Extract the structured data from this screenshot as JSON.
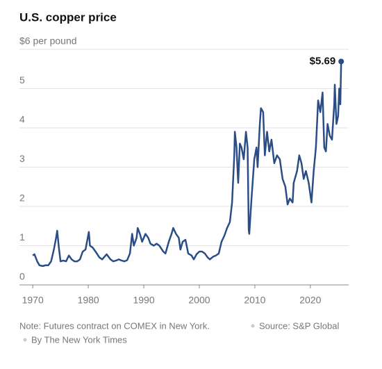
{
  "chart_data": {
    "type": "line",
    "title": "U.S. copper price",
    "annotation": "$5.69",
    "note": "Note: Futures contract on COMEX in New York.",
    "source": "Source: S&P Global",
    "credit": "By The New York Times",
    "color": "#2b4d87",
    "grid": true,
    "xlim": [
      1967.6,
      2026.9
    ],
    "ylim": [
      0,
      6
    ],
    "xticks": [
      1970,
      1980,
      1990,
      2000,
      2010,
      2020
    ],
    "yticks": [
      0,
      1,
      2,
      3,
      4,
      5,
      {
        "value": 6,
        "label": "$6 per pound"
      }
    ],
    "x": [
      1970.0,
      1970.3,
      1970.8,
      1971.2,
      1971.8,
      1972.3,
      1972.8,
      1973.3,
      1973.8,
      1974.2,
      1974.4,
      1974.7,
      1975.0,
      1975.5,
      1976.0,
      1976.5,
      1977.0,
      1977.5,
      1978.0,
      1978.5,
      1979.0,
      1979.5,
      1980.1,
      1980.3,
      1980.8,
      1981.3,
      1982.0,
      1982.5,
      1983.3,
      1984.0,
      1984.5,
      1985.0,
      1985.5,
      1986.0,
      1986.5,
      1987.0,
      1987.5,
      1987.9,
      1988.2,
      1988.7,
      1988.9,
      1989.3,
      1989.7,
      1990.3,
      1990.8,
      1991.2,
      1991.8,
      1992.3,
      1992.8,
      1993.5,
      1993.9,
      1994.5,
      1995.0,
      1995.3,
      1995.8,
      1996.3,
      1996.6,
      1997.0,
      1997.5,
      1998.0,
      1998.6,
      1999.0,
      1999.5,
      2000.0,
      2000.5,
      2001.0,
      2001.5,
      2001.9,
      2002.5,
      2003.0,
      2003.5,
      2004.0,
      2004.5,
      2005.0,
      2005.5,
      2005.9,
      2006.3,
      2006.4,
      2006.7,
      2007.0,
      2007.3,
      2007.6,
      2008.0,
      2008.4,
      2008.7,
      2008.9,
      2009.0,
      2009.4,
      2009.9,
      2010.3,
      2010.5,
      2010.9,
      2011.1,
      2011.5,
      2011.8,
      2012.2,
      2012.6,
      2013.0,
      2013.5,
      2014.0,
      2014.5,
      2015.0,
      2015.5,
      2015.9,
      2016.3,
      2016.8,
      2017.0,
      2017.6,
      2018.0,
      2018.4,
      2018.8,
      2019.2,
      2019.7,
      2020.2,
      2020.6,
      2021.0,
      2021.4,
      2021.8,
      2022.2,
      2022.5,
      2022.8,
      2023.1,
      2023.5,
      2023.9,
      2024.3,
      2024.4,
      2024.7,
      2025.0,
      2025.2,
      2025.4,
      2025.55
    ],
    "values": [
      0.75,
      0.78,
      0.6,
      0.5,
      0.48,
      0.5,
      0.5,
      0.6,
      0.9,
      1.2,
      1.38,
      0.95,
      0.6,
      0.62,
      0.6,
      0.75,
      0.65,
      0.6,
      0.6,
      0.65,
      0.85,
      0.9,
      1.35,
      1.0,
      0.95,
      0.85,
      0.7,
      0.65,
      0.78,
      0.65,
      0.6,
      0.62,
      0.65,
      0.62,
      0.6,
      0.63,
      0.8,
      1.3,
      1.0,
      1.2,
      1.45,
      1.3,
      1.1,
      1.3,
      1.2,
      1.05,
      1.0,
      1.05,
      1.0,
      0.85,
      0.8,
      1.1,
      1.3,
      1.45,
      1.3,
      1.2,
      0.9,
      1.1,
      1.15,
      0.8,
      0.75,
      0.65,
      0.78,
      0.85,
      0.85,
      0.8,
      0.7,
      0.65,
      0.72,
      0.75,
      0.8,
      1.1,
      1.25,
      1.45,
      1.6,
      2.1,
      3.3,
      3.9,
      3.5,
      2.6,
      3.6,
      3.5,
      3.2,
      3.9,
      3.5,
      1.4,
      1.3,
      2.2,
      3.2,
      3.5,
      3.0,
      4.1,
      4.5,
      4.4,
      3.3,
      3.9,
      3.4,
      3.7,
      3.1,
      3.3,
      3.2,
      2.7,
      2.5,
      2.05,
      2.2,
      2.1,
      2.6,
      2.9,
      3.3,
      3.1,
      2.7,
      2.9,
      2.6,
      2.1,
      2.9,
      3.5,
      4.7,
      4.4,
      4.9,
      3.5,
      3.4,
      4.1,
      3.8,
      3.7,
      4.6,
      5.1,
      4.1,
      4.3,
      5.0,
      4.6,
      5.69
    ]
  }
}
